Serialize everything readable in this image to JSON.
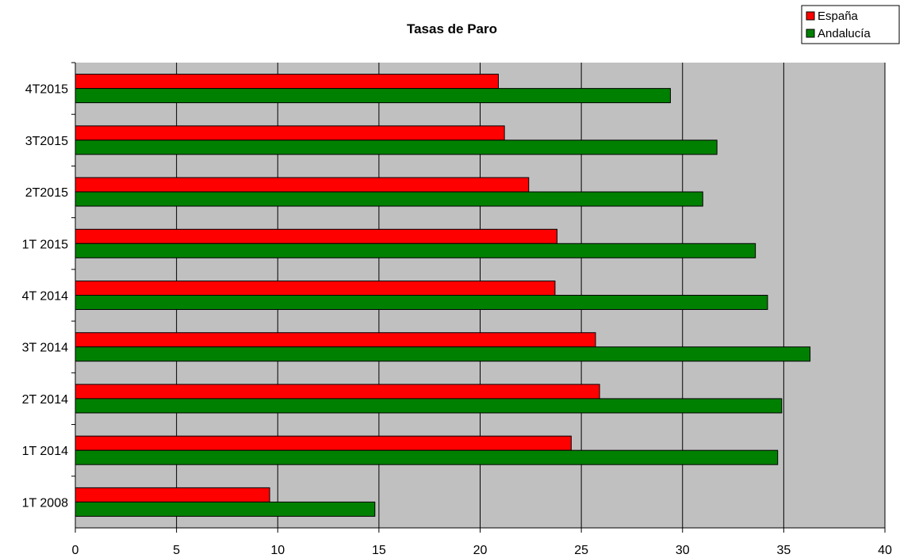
{
  "chart_data": {
    "type": "bar",
    "orientation": "horizontal",
    "title": "Tasas de Paro",
    "xlabel": "",
    "ylabel": "",
    "categories": [
      "1T 2008",
      "1T 2014",
      "2T 2014",
      "3T 2014",
      "4T 2014",
      "1T 2015",
      "2T2015",
      "3T2015",
      "4T2015"
    ],
    "series": [
      {
        "name": "España",
        "color": "#ff0000",
        "values": [
          9.6,
          24.5,
          25.9,
          25.7,
          23.7,
          23.8,
          22.4,
          21.2,
          20.9
        ]
      },
      {
        "name": "Andalucía",
        "color": "#008000",
        "values": [
          14.8,
          34.7,
          34.9,
          36.3,
          34.2,
          33.6,
          31.0,
          31.7,
          29.4
        ]
      }
    ],
    "xlim": [
      0,
      40
    ],
    "xticks": [
      "0",
      "5",
      "10",
      "15",
      "20",
      "25",
      "30",
      "35",
      "40"
    ],
    "grid": true,
    "plot_background": "#c0c0c0",
    "legend_position": "top-right"
  }
}
